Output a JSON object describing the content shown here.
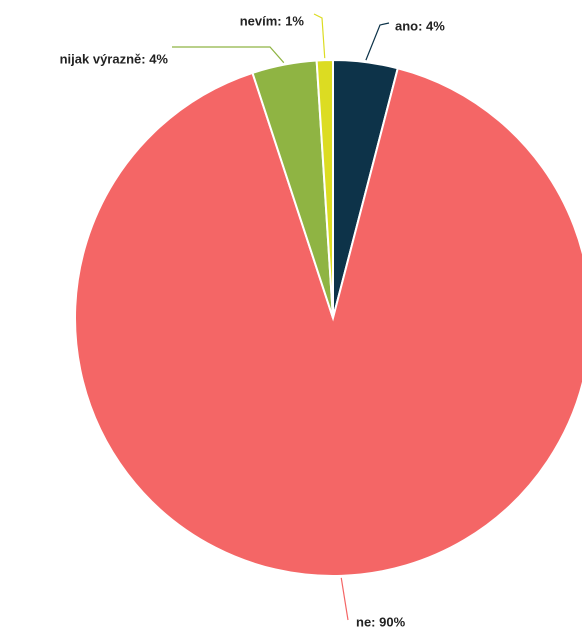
{
  "chart_data": {
    "type": "pie",
    "categories": [
      "ano",
      "ne",
      "nijak výrazně",
      "nevím"
    ],
    "values": [
      4,
      90,
      4,
      1
    ],
    "value_labels": [
      "ano: 4%",
      "ne: 90%",
      "nijak výrazně: 4%",
      "nevím: 1%"
    ],
    "colors": [
      "#0d3349",
      "#f46666",
      "#8fb443",
      "#dcdc22"
    ]
  }
}
